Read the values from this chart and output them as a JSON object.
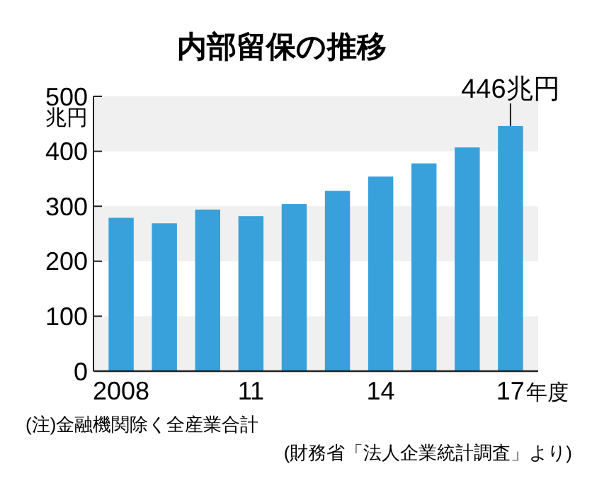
{
  "chart_data": {
    "type": "bar",
    "title": "内部留保の推移",
    "ylabel": "兆円",
    "xlabel": "年度",
    "categories": [
      "2008",
      null,
      null,
      "11",
      null,
      null,
      "14",
      null,
      null,
      "17"
    ],
    "values": [
      279,
      269,
      294,
      282,
      304,
      328,
      354,
      378,
      407,
      446
    ],
    "color": "#38a1db",
    "ylim": [
      0,
      500
    ],
    "yticks": [
      0,
      100,
      200,
      300,
      400,
      500
    ],
    "bands": [
      {
        "axis": "y",
        "from": 0,
        "to": 100,
        "color": "#f0f0f0"
      },
      {
        "axis": "y",
        "from": 200,
        "to": 300,
        "color": "#f0f0f0"
      },
      {
        "axis": "y",
        "from": 400,
        "to": 500,
        "color": "#f0f0f0"
      }
    ],
    "annotations": [
      {
        "text": "446兆円",
        "x": "17",
        "y": 446
      },
      "(注)金融機関除く全産業合計",
      "(財務省「法人企業統計調査」より)"
    ]
  }
}
